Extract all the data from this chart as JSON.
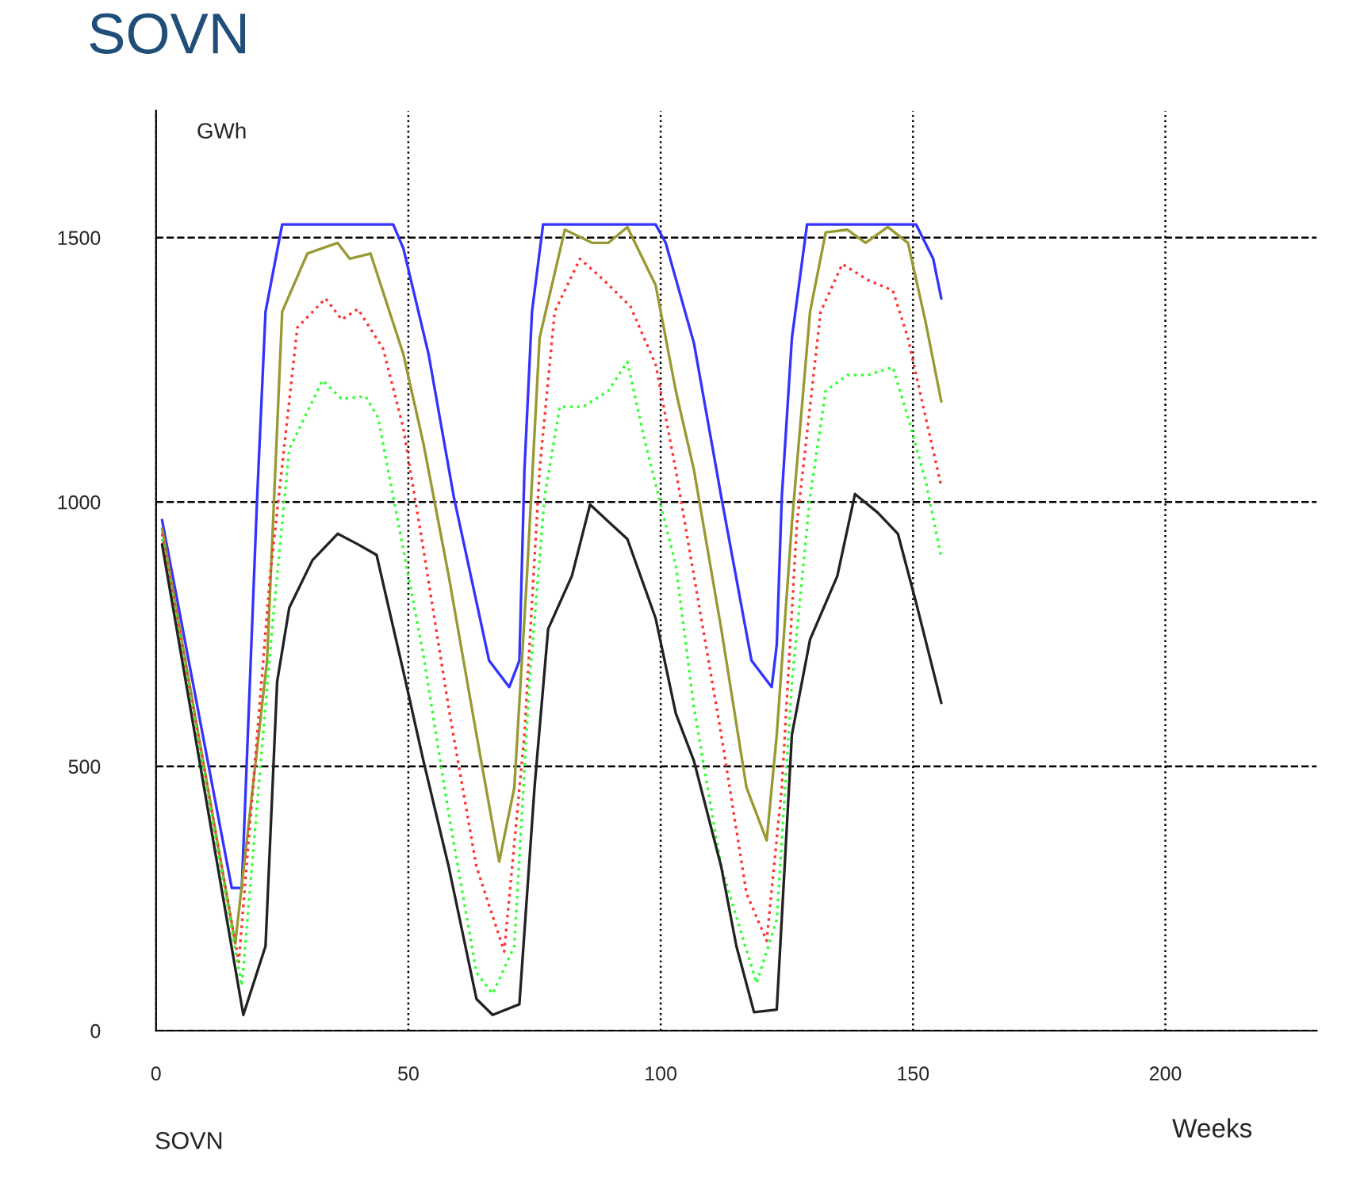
{
  "chart_data": {
    "type": "line",
    "title": "SOVN",
    "xlabel": "Weeks",
    "ylabel": "GWh",
    "annotations": [
      "SOVN"
    ],
    "xlim": [
      0,
      230
    ],
    "ylim": [
      0,
      1740
    ],
    "xticks": [
      0,
      50,
      100,
      150,
      200
    ],
    "yticks": [
      0,
      500,
      1000,
      1500
    ],
    "grid": true,
    "legend": false,
    "series": [
      {
        "color": "#3333ff",
        "line_style": "solid",
        "x": [
          1.2,
          15,
          17,
          20,
          21.7,
          25,
          47,
          49,
          54,
          59,
          66,
          70,
          72,
          73,
          74.5,
          76.7,
          99,
          101,
          106.6,
          112,
          118,
          122,
          123,
          124,
          126,
          129,
          150.6,
          154,
          155.6
        ],
        "values": [
          966,
          270,
          270,
          1000,
          1360,
          1525,
          1525,
          1480,
          1280,
          1010,
          700,
          650,
          700,
          1060,
          1360,
          1525,
          1525,
          1490,
          1300,
          1010,
          700,
          650,
          730,
          1010,
          1310,
          1525,
          1525,
          1460,
          1385
        ]
      },
      {
        "color": "#999933",
        "line_style": "solid",
        "x": [
          1.2,
          15.7,
          22,
          25,
          30,
          36,
          38.4,
          42.5,
          49,
          53,
          58,
          63.5,
          68,
          71,
          73.5,
          76,
          81,
          86.5,
          89.6,
          93.4,
          99,
          103,
          106.6,
          112,
          117,
          121,
          123,
          126,
          129.6,
          132.7,
          137,
          140.6,
          145,
          149,
          152.5,
          155.6
        ],
        "values": [
          950,
          165,
          700,
          1360,
          1470,
          1490,
          1460,
          1470,
          1280,
          1110,
          860,
          560,
          320,
          460,
          860,
          1310,
          1515,
          1490,
          1490,
          1520,
          1410,
          1210,
          1060,
          760,
          460,
          360,
          560,
          960,
          1360,
          1510,
          1515,
          1490,
          1520,
          1490,
          1340,
          1190
        ]
      },
      {
        "color": "#ff3333",
        "line_style": "dotted",
        "x": [
          1.2,
          16.4,
          22.6,
          28,
          33.6,
          36.8,
          40,
          45,
          49,
          53,
          58,
          63.5,
          69,
          73,
          76,
          79,
          84,
          88.7,
          94,
          99,
          103,
          106.6,
          112,
          117,
          121,
          124,
          127,
          131.7,
          136,
          141,
          146,
          149,
          152.5,
          155.6
        ],
        "values": [
          940,
          130,
          860,
          1330,
          1385,
          1345,
          1365,
          1290,
          1140,
          910,
          610,
          310,
          150,
          560,
          1060,
          1360,
          1460,
          1420,
          1370,
          1260,
          1060,
          860,
          560,
          260,
          170,
          460,
          960,
          1360,
          1450,
          1420,
          1400,
          1310,
          1160,
          1030
        ]
      },
      {
        "color": "#33ff33",
        "line_style": "dotted",
        "x": [
          1.2,
          17,
          23,
          26.4,
          33,
          36.8,
          41.5,
          44,
          48,
          53,
          58,
          63.5,
          66.7,
          71,
          74,
          77,
          80,
          84.6,
          89.6,
          93.4,
          97,
          103,
          106.6,
          112,
          119,
          123,
          126,
          129.6,
          132.7,
          137,
          141,
          146,
          149,
          152.5,
          155.6
        ],
        "values": [
          930,
          85,
          760,
          1100,
          1230,
          1195,
          1200,
          1160,
          960,
          710,
          410,
          110,
          70,
          160,
          660,
          1010,
          1180,
          1180,
          1210,
          1265,
          1110,
          880,
          610,
          310,
          90,
          210,
          660,
          1010,
          1210,
          1240,
          1240,
          1255,
          1160,
          1040,
          895
        ]
      },
      {
        "color": "#222222",
        "line_style": "solid",
        "x": [
          1.2,
          17.3,
          21.7,
          24,
          26.4,
          31,
          36,
          40,
          43.7,
          49,
          53,
          58,
          63.5,
          66.7,
          72,
          75,
          77.7,
          82.4,
          86,
          93.4,
          99,
          103,
          106.6,
          112,
          115,
          118.5,
          123,
          126,
          129.6,
          135,
          138.5,
          143,
          147,
          150.6,
          155.6
        ],
        "values": [
          920,
          30,
          160,
          660,
          800,
          890,
          940,
          920,
          900,
          680,
          510,
          310,
          60,
          30,
          50,
          460,
          760,
          860,
          995,
          930,
          780,
          600,
          510,
          310,
          160,
          35,
          40,
          560,
          740,
          860,
          1015,
          980,
          940,
          810,
          620
        ]
      }
    ]
  }
}
